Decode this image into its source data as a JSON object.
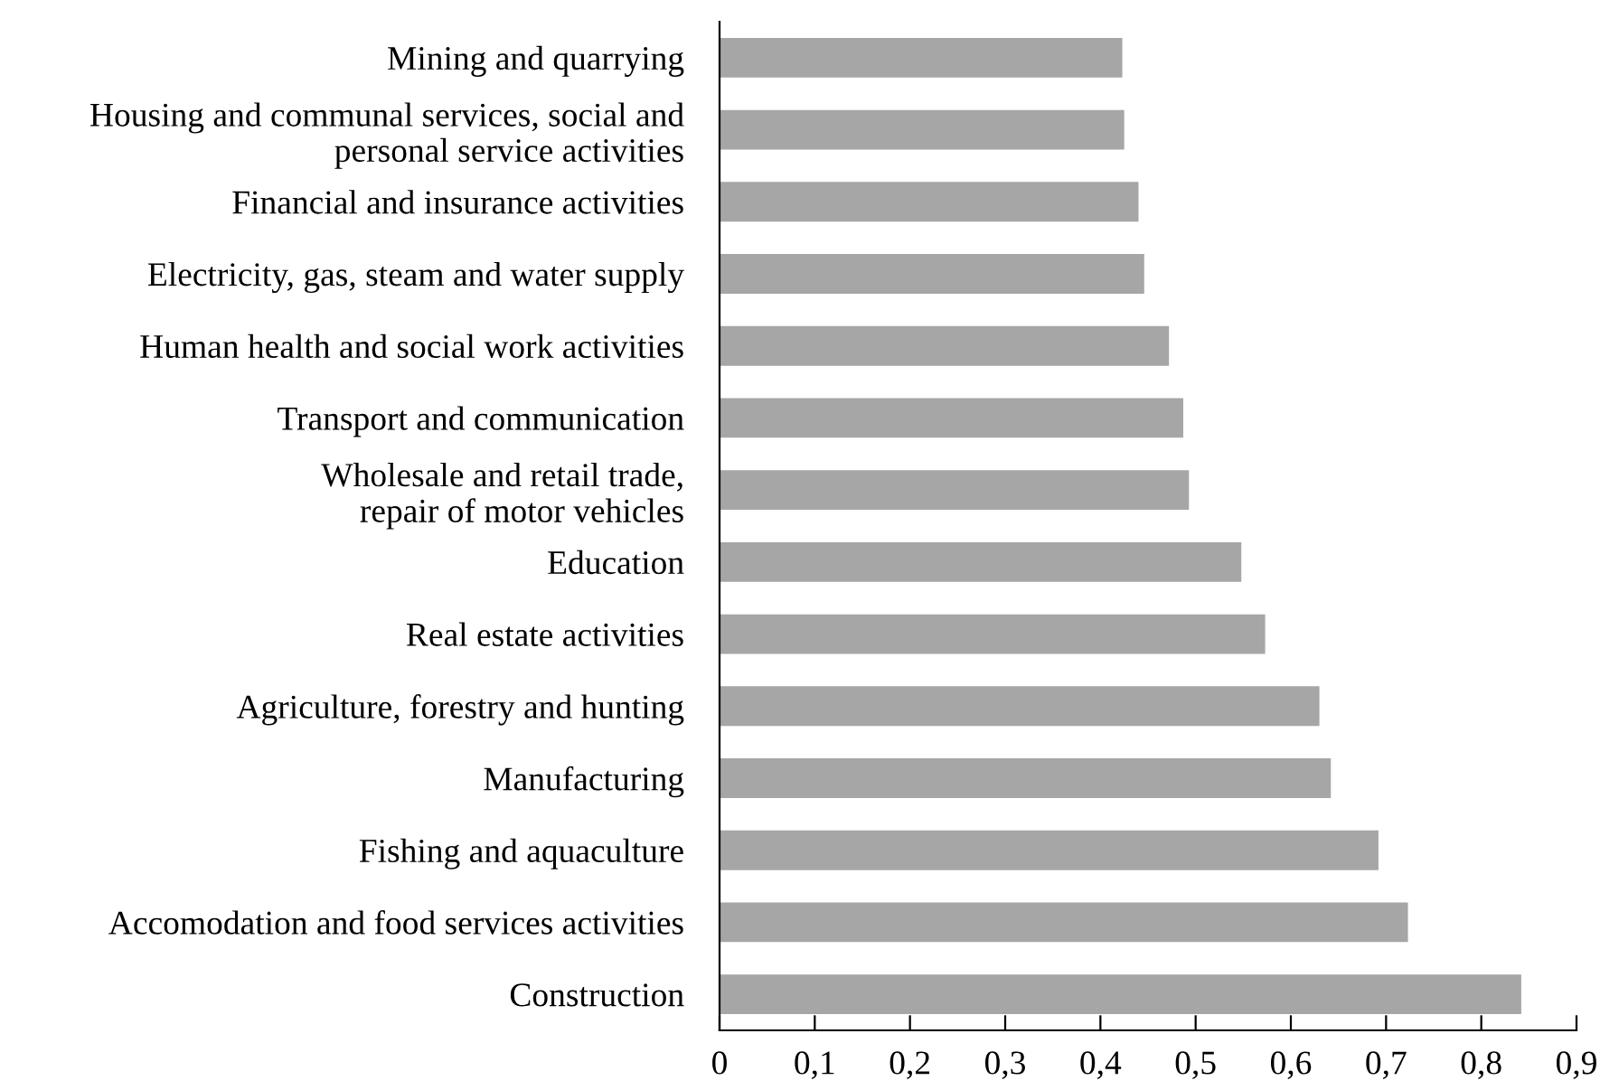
{
  "chart_data": {
    "type": "bar",
    "orientation": "horizontal",
    "categories": [
      "Mining and quarrying",
      "Housing and communal services, social and\npersonal service activities",
      "Financial and insurance activities",
      "Electricity, gas, steam and water supply",
      "Human health and social work activities",
      "Transport and communication",
      "Wholesale and retail trade,\nrepair of motor vehicles",
      "Education",
      "Real estate activities",
      "Agriculture, forestry and hunting",
      "Manufacturing",
      "Fishing and aquaculture",
      "Accomodation and food services activities",
      "Construction"
    ],
    "values": [
      0.423,
      0.425,
      0.44,
      0.446,
      0.472,
      0.487,
      0.493,
      0.548,
      0.573,
      0.63,
      0.642,
      0.692,
      0.723,
      0.842
    ],
    "color": "#a6a6a6",
    "xlim": [
      0,
      0.9
    ],
    "xticks": [
      0,
      {
        "value": 0.1,
        "label": "0,1"
      },
      {
        "value": 0.2,
        "label": "0,2"
      },
      {
        "value": 0.3,
        "label": "0,3"
      },
      {
        "value": 0.4,
        "label": "0,4"
      },
      {
        "value": 0.5,
        "label": "0,5"
      },
      {
        "value": 0.6,
        "label": "0,6"
      },
      {
        "value": 0.7,
        "label": "0,7"
      },
      {
        "value": 0.8,
        "label": "0,8"
      },
      {
        "value": 0.9,
        "label": "0,9"
      }
    ],
    "grid": false,
    "legend": false
  }
}
